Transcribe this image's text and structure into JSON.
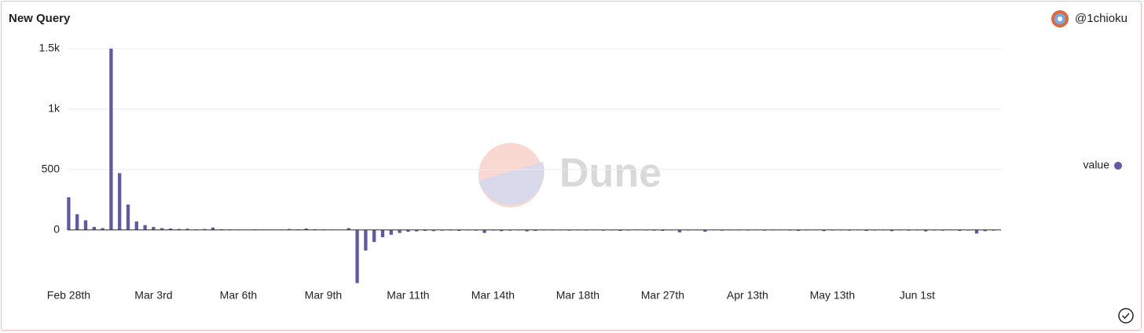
{
  "header": {
    "title": "New Query",
    "user": "@1chioku"
  },
  "watermark": "Dune",
  "chart_data": {
    "type": "bar",
    "categories": [
      "Feb 28th",
      null,
      null,
      null,
      null,
      null,
      null,
      null,
      null,
      null,
      "Mar 3rd",
      null,
      null,
      null,
      null,
      null,
      null,
      null,
      null,
      null,
      "Mar 6th",
      null,
      null,
      null,
      null,
      null,
      null,
      null,
      null,
      null,
      "Mar 9th",
      null,
      null,
      null,
      null,
      null,
      null,
      null,
      null,
      null,
      "Mar 11th",
      null,
      null,
      null,
      null,
      null,
      null,
      null,
      null,
      null,
      "Mar 14th",
      null,
      null,
      null,
      null,
      null,
      null,
      null,
      null,
      null,
      "Mar 18th",
      null,
      null,
      null,
      null,
      null,
      null,
      null,
      null,
      null,
      "Mar 27th",
      null,
      null,
      null,
      null,
      null,
      null,
      null,
      null,
      null,
      "Apr 13th",
      null,
      null,
      null,
      null,
      null,
      null,
      null,
      null,
      null,
      "May 13th",
      null,
      null,
      null,
      null,
      null,
      null,
      null,
      null,
      null,
      "Jun 1st",
      null,
      null,
      null,
      null,
      null,
      null,
      null,
      null,
      null
    ],
    "series": [
      {
        "name": "value",
        "color": "#5d5ba6",
        "values": [
          270,
          130,
          80,
          25,
          15,
          1500,
          470,
          210,
          70,
          40,
          25,
          15,
          12,
          8,
          10,
          5,
          8,
          20,
          6,
          4,
          3,
          2,
          4,
          3,
          2,
          3,
          8,
          5,
          12,
          6,
          4,
          3,
          2,
          15,
          -440,
          -170,
          -100,
          -60,
          -40,
          -25,
          -15,
          -12,
          -8,
          -10,
          -6,
          -5,
          -8,
          -4,
          -6,
          -25,
          -5,
          -10,
          -6,
          -4,
          -12,
          -8,
          -4,
          -5,
          -3,
          -6,
          -4,
          -5,
          -3,
          -6,
          -4,
          -8,
          -5,
          -3,
          -4,
          -6,
          -8,
          -4,
          -20,
          -5,
          -3,
          -15,
          -4,
          -6,
          -3,
          -4,
          -5,
          -3,
          -6,
          -4,
          -3,
          -5,
          -8,
          -4,
          -3,
          -10,
          -5,
          -4,
          -6,
          -3,
          -8,
          -5,
          -4,
          -10,
          -3,
          -6,
          -4,
          -12,
          -5,
          -6,
          -3,
          -8,
          -5,
          -30,
          -10,
          -6
        ]
      }
    ],
    "ylim": [
      -450,
      1500
    ],
    "yticks": [
      0,
      500,
      {
        "value": 1000,
        "label": "1k"
      },
      {
        "value": 1500,
        "label": "1.5k"
      }
    ],
    "grid": true,
    "legend": "right"
  }
}
